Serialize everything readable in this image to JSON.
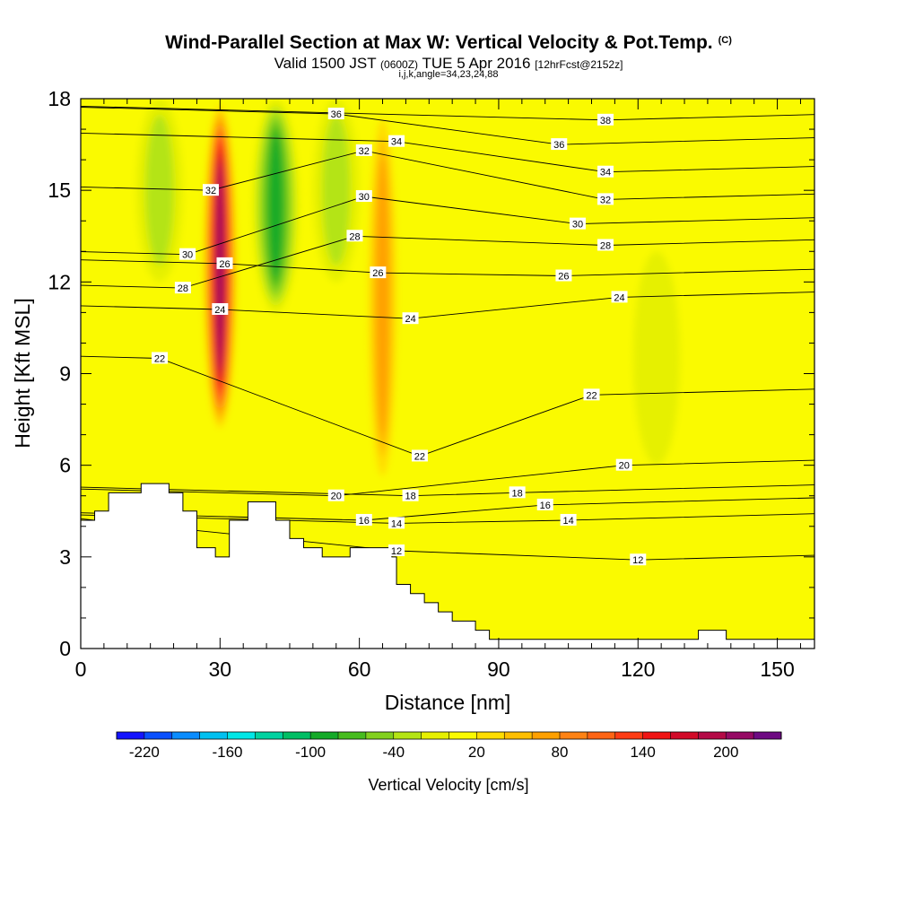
{
  "header": {
    "title": "Wind-Parallel Section at Max W: Vertical Velocity & Pot.Temp.",
    "title_mark": "(C)",
    "valid_prefix": "Valid 1500 JST",
    "valid_utc": "(0600Z)",
    "valid_date": "TUE 5 Apr 2016",
    "forecast": "[12hrFcst@2152z]",
    "indices": "i,j,k,angle=34,23,24,88"
  },
  "chart_data": {
    "type": "heatmap",
    "xlabel": "Distance [nm]",
    "ylabel": "Height [Kft MSL]",
    "xlim": [
      0,
      158
    ],
    "ylim": [
      0,
      18
    ],
    "x_ticks": [
      0,
      30,
      60,
      90,
      120,
      150
    ],
    "y_ticks": [
      0,
      3,
      6,
      9,
      12,
      15,
      18
    ],
    "colorbar": {
      "label": "Vertical Velocity [cm/s]",
      "range": [
        -240,
        240
      ],
      "tick_labels": [
        -220,
        -160,
        -100,
        -40,
        20,
        80,
        140,
        200
      ],
      "colors": [
        "#1414ff",
        "#0a50ff",
        "#0a8cff",
        "#00c0f0",
        "#00e6e6",
        "#00d2a0",
        "#00be64",
        "#14aa28",
        "#46bc1e",
        "#82d01e",
        "#b4e414",
        "#e6f000",
        "#fafa00",
        "#ffdc00",
        "#ffbe00",
        "#ffa000",
        "#ff8214",
        "#ff6414",
        "#ff3c14",
        "#f01414",
        "#d20a28",
        "#b40a46",
        "#960a64",
        "#6e0a82"
      ]
    },
    "terrain_kft": [
      [
        0,
        4.2
      ],
      [
        3,
        4.2
      ],
      [
        3,
        4.5
      ],
      [
        6,
        4.5
      ],
      [
        6,
        5.1
      ],
      [
        13,
        5.1
      ],
      [
        13,
        5.4
      ],
      [
        19,
        5.4
      ],
      [
        19,
        5.1
      ],
      [
        22,
        5.1
      ],
      [
        22,
        4.5
      ],
      [
        25,
        4.5
      ],
      [
        25,
        3.3
      ],
      [
        29,
        3.3
      ],
      [
        29,
        3.0
      ],
      [
        32,
        3.0
      ],
      [
        32,
        4.2
      ],
      [
        36,
        4.2
      ],
      [
        36,
        4.8
      ],
      [
        42,
        4.8
      ],
      [
        42,
        4.2
      ],
      [
        45,
        4.2
      ],
      [
        45,
        3.6
      ],
      [
        48,
        3.6
      ],
      [
        48,
        3.3
      ],
      [
        52,
        3.3
      ],
      [
        52,
        3.0
      ],
      [
        58,
        3.0
      ],
      [
        58,
        3.3
      ],
      [
        67,
        3.3
      ],
      [
        67,
        3.0
      ],
      [
        68,
        3.0
      ],
      [
        68,
        2.1
      ],
      [
        71,
        2.1
      ],
      [
        71,
        1.8
      ],
      [
        74,
        1.8
      ],
      [
        74,
        1.5
      ],
      [
        77,
        1.5
      ],
      [
        77,
        1.2
      ],
      [
        80,
        1.2
      ],
      [
        80,
        0.9
      ],
      [
        85,
        0.9
      ],
      [
        85,
        0.6
      ],
      [
        88,
        0.6
      ],
      [
        88,
        0.3
      ],
      [
        133,
        0.3
      ],
      [
        133,
        0.6
      ],
      [
        139,
        0.6
      ],
      [
        139,
        0.3
      ],
      [
        158,
        0.3
      ]
    ],
    "updraft_cores": [
      {
        "x": 30,
        "y0": 7,
        "y1": 18,
        "max_cm_s": 220
      },
      {
        "x": 65,
        "y0": 5,
        "y1": 18,
        "max_cm_s": 80
      }
    ],
    "downdraft_cores": [
      {
        "x": 42,
        "y0": 11,
        "y1": 18,
        "min_cm_s": -100
      },
      {
        "x": 17,
        "y0": 12,
        "y1": 18,
        "min_cm_s": -40
      },
      {
        "x": 55,
        "y0": 12,
        "y1": 18,
        "min_cm_s": -40
      },
      {
        "x": 124,
        "y0": 6,
        "y1": 13,
        "min_cm_s": -20
      }
    ],
    "isentropes": [
      {
        "theta": 12,
        "labels": [
          [
            68,
            3.2
          ],
          [
            120,
            2.9
          ]
        ]
      },
      {
        "theta": 14,
        "labels": [
          [
            68,
            4.1
          ],
          [
            105,
            4.2
          ]
        ]
      },
      {
        "theta": 16,
        "labels": [
          [
            61,
            4.2
          ],
          [
            100,
            4.7
          ]
        ]
      },
      {
        "theta": 18,
        "labels": [
          [
            71,
            5.0
          ],
          [
            94,
            5.1
          ]
        ]
      },
      {
        "theta": 20,
        "labels": [
          [
            55,
            5.0
          ],
          [
            117,
            6.0
          ]
        ]
      },
      {
        "theta": 22,
        "labels": [
          [
            17,
            9.5
          ],
          [
            73,
            6.3
          ],
          [
            110,
            8.3
          ]
        ]
      },
      {
        "theta": 24,
        "labels": [
          [
            30,
            11.1
          ],
          [
            71,
            10.8
          ],
          [
            116,
            11.5
          ]
        ]
      },
      {
        "theta": 26,
        "labels": [
          [
            31,
            12.6
          ],
          [
            64,
            12.3
          ],
          [
            104,
            12.2
          ]
        ]
      },
      {
        "theta": 28,
        "labels": [
          [
            22,
            11.8
          ],
          [
            59,
            13.5
          ],
          [
            113,
            13.2
          ]
        ]
      },
      {
        "theta": 30,
        "labels": [
          [
            23,
            12.9
          ],
          [
            61,
            14.8
          ],
          [
            107,
            13.9
          ]
        ]
      },
      {
        "theta": 32,
        "labels": [
          [
            28,
            15.0
          ],
          [
            61,
            16.3
          ],
          [
            113,
            14.7
          ]
        ]
      },
      {
        "theta": 34,
        "labels": [
          [
            68,
            16.6
          ],
          [
            113,
            15.6
          ]
        ]
      },
      {
        "theta": 36,
        "labels": [
          [
            55,
            17.5
          ],
          [
            103,
            16.5
          ]
        ]
      },
      {
        "theta": 38,
        "labels": [
          [
            113,
            17.3
          ]
        ]
      }
    ]
  }
}
